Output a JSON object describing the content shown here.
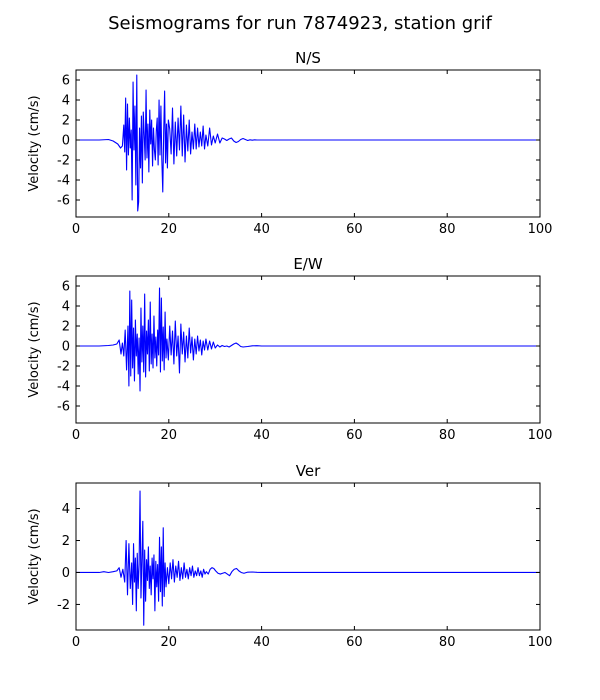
{
  "figure": {
    "title": "Seismograms for run 7874923, station grif"
  },
  "chart_data": [
    {
      "type": "line",
      "title": "N/S",
      "xlabel": "",
      "ylabel": "Velocity (cm/s)",
      "xlim": [
        0,
        100
      ],
      "ylim": [
        -7.7,
        7.0
      ],
      "xticks": [
        0,
        20,
        40,
        60,
        80,
        100
      ],
      "yticks": [
        -6,
        -4,
        -2,
        0,
        2,
        4,
        6
      ],
      "grid": false,
      "color": "#0000ff",
      "series": [
        {
          "x": [
            0,
            5,
            7,
            8,
            9,
            9.6,
            10.0,
            10.3,
            10.5,
            10.7,
            10.9,
            11.1,
            11.3,
            11.5,
            11.7,
            11.9,
            12.1,
            12.3,
            12.5,
            12.7,
            12.9,
            13.1,
            13.3,
            13.5,
            13.7,
            13.9,
            14.1,
            14.3,
            14.5,
            14.7,
            14.9,
            15.1,
            15.3,
            15.5,
            15.7,
            15.9,
            16.1,
            16.3,
            16.5,
            16.7,
            16.9,
            17.1,
            17.3,
            17.5,
            17.7,
            17.9,
            18.1,
            18.3,
            18.5,
            18.7,
            18.9,
            19.1,
            19.3,
            19.5,
            19.7,
            19.9,
            20.2,
            20.5,
            20.8,
            21.1,
            21.4,
            21.7,
            22.0,
            22.3,
            22.6,
            22.9,
            23.2,
            23.5,
            23.8,
            24.1,
            24.4,
            24.7,
            25.0,
            25.3,
            25.6,
            25.9,
            26.2,
            26.5,
            26.8,
            27.1,
            27.4,
            27.7,
            28.0,
            28.4,
            28.8,
            29.2,
            29.6,
            30.0,
            30.5,
            31.0,
            31.5,
            32.0,
            32.5,
            33.0,
            33.5,
            34.0,
            34.5,
            35.0,
            35.5,
            36.0,
            36.5,
            37.0,
            37.5,
            38.0,
            38.5,
            39.0,
            40,
            45,
            50,
            60,
            70,
            80,
            90,
            100
          ],
          "y": [
            0,
            0,
            0.05,
            -0.1,
            -0.4,
            -0.8,
            -0.6,
            1.5,
            -1.2,
            4.2,
            -3.0,
            3.6,
            -1.5,
            2.2,
            -0.8,
            1.0,
            -6.0,
            5.8,
            -1.0,
            3.4,
            -4.5,
            6.5,
            -7.1,
            -6.2,
            1.2,
            -2.8,
            2.4,
            -4.3,
            2.8,
            0.5,
            -2.0,
            5.0,
            -1.8,
            1.6,
            -3.2,
            3.0,
            -0.4,
            2.0,
            -2.6,
            1.2,
            -1.0,
            -2.0,
            0.9,
            2.2,
            -2.5,
            4.0,
            -1.5,
            3.4,
            -2.0,
            -5.2,
            0.8,
            4.9,
            -2.3,
            1.6,
            -2.8,
            2.0,
            1.1,
            -1.4,
            3.2,
            -2.4,
            1.8,
            -1.6,
            2.2,
            -1.0,
            3.4,
            -1.6,
            2.5,
            -2.2,
            1.5,
            -1.1,
            2.0,
            -1.4,
            0.8,
            -0.9,
            1.6,
            -0.9,
            1.2,
            -0.7,
            0.8,
            -0.6,
            1.4,
            -0.9,
            0.5,
            -0.6,
            1.2,
            -0.5,
            0.4,
            -0.3,
            0.6,
            -0.3,
            0.2,
            0.1,
            -0.05,
            0.1,
            0.2,
            -0.1,
            -0.25,
            -0.15,
            0.05,
            0.15,
            0.05,
            -0.05,
            0.02,
            -0.02,
            0.02,
            0,
            0,
            0,
            0,
            0,
            0,
            0,
            0,
            0
          ]
        }
      ]
    },
    {
      "type": "line",
      "title": "E/W",
      "xlabel": "",
      "ylabel": "Velocity (cm/s)",
      "xlim": [
        0,
        100
      ],
      "ylim": [
        -7.7,
        7.0
      ],
      "xticks": [
        0,
        20,
        40,
        60,
        80,
        100
      ],
      "yticks": [
        -6,
        -4,
        -2,
        0,
        2,
        4,
        6
      ],
      "grid": false,
      "color": "#0000ff",
      "series": [
        {
          "x": [
            0,
            5,
            7,
            8,
            8.8,
            9.3,
            9.7,
            10.0,
            10.3,
            10.6,
            10.9,
            11.2,
            11.4,
            11.6,
            11.8,
            12.0,
            12.2,
            12.4,
            12.6,
            12.8,
            13.0,
            13.2,
            13.4,
            13.6,
            13.8,
            14.0,
            14.2,
            14.4,
            14.6,
            14.8,
            15.0,
            15.2,
            15.4,
            15.6,
            15.8,
            16.0,
            16.2,
            16.4,
            16.6,
            16.8,
            17.0,
            17.2,
            17.4,
            17.6,
            17.8,
            18.0,
            18.2,
            18.4,
            18.6,
            18.8,
            19.0,
            19.2,
            19.4,
            19.6,
            19.9,
            20.2,
            20.5,
            20.8,
            21.1,
            21.4,
            21.7,
            22.0,
            22.3,
            22.6,
            22.9,
            23.2,
            23.5,
            23.8,
            24.1,
            24.4,
            24.7,
            25.0,
            25.3,
            25.6,
            25.9,
            26.2,
            26.5,
            26.8,
            27.1,
            27.4,
            27.7,
            28.0,
            28.4,
            28.8,
            29.2,
            29.6,
            30.0,
            30.5,
            31.0,
            31.5,
            32.0,
            32.5,
            33.0,
            33.5,
            34.0,
            34.5,
            35.0,
            35.5,
            36.0,
            37.0,
            38.0,
            39.0,
            40,
            45,
            50,
            60,
            70,
            80,
            90,
            100
          ],
          "y": [
            0,
            0,
            0.05,
            0.1,
            0.2,
            0.6,
            -0.8,
            0.3,
            -1.0,
            1.6,
            -2.4,
            2.0,
            -4.0,
            5.5,
            -3.0,
            4.6,
            -2.2,
            1.8,
            -3.5,
            2.6,
            -1.0,
            1.2,
            -2.8,
            0.8,
            -4.5,
            3.8,
            -1.6,
            2.0,
            -2.6,
            5.2,
            -3.1,
            1.5,
            -0.8,
            2.6,
            -2.5,
            4.4,
            -1.8,
            1.2,
            -2.2,
            3.0,
            -1.2,
            0.9,
            -2.0,
            1.6,
            -0.9,
            5.8,
            -2.6,
            4.8,
            -1.5,
            1.9,
            -2.4,
            3.4,
            -1.2,
            0.7,
            -1.4,
            2.0,
            -0.9,
            1.5,
            -1.8,
            2.5,
            -1.0,
            1.0,
            -2.7,
            2.2,
            -0.8,
            1.4,
            -1.6,
            1.0,
            -1.2,
            1.8,
            -0.7,
            0.9,
            -1.4,
            0.7,
            -0.8,
            1.0,
            -0.5,
            0.6,
            -0.9,
            0.5,
            -0.4,
            0.7,
            -0.4,
            0.5,
            -0.3,
            0.4,
            -0.2,
            0.1,
            -0.1,
            0.05,
            -0.05,
            0.0,
            -0.1,
            0.05,
            0.2,
            0.3,
            0.15,
            -0.05,
            -0.1,
            -0.05,
            0.02,
            0.03,
            0,
            0,
            0,
            0,
            0,
            0,
            0,
            0
          ]
        }
      ]
    },
    {
      "type": "line",
      "title": "Ver",
      "xlabel": "",
      "ylabel": "Velocity (cm/s)",
      "xlim": [
        0,
        100
      ],
      "ylim": [
        -3.6,
        5.6
      ],
      "xticks": [
        0,
        20,
        40,
        60,
        80,
        100
      ],
      "yticks": [
        -2,
        0,
        2,
        4
      ],
      "grid": false,
      "color": "#0000ff",
      "series": [
        {
          "x": [
            0,
            5,
            6,
            7,
            8,
            8.8,
            9.3,
            9.7,
            10.1,
            10.5,
            10.8,
            11.1,
            11.4,
            11.7,
            12.0,
            12.2,
            12.4,
            12.6,
            12.8,
            13.0,
            13.2,
            13.4,
            13.6,
            13.8,
            14.0,
            14.2,
            14.4,
            14.6,
            14.8,
            15.0,
            15.2,
            15.4,
            15.6,
            15.8,
            16.0,
            16.2,
            16.4,
            16.6,
            16.8,
            17.0,
            17.2,
            17.4,
            17.6,
            17.8,
            18.0,
            18.2,
            18.4,
            18.6,
            18.8,
            19.0,
            19.2,
            19.4,
            19.7,
            20.0,
            20.3,
            20.6,
            20.9,
            21.2,
            21.5,
            21.8,
            22.1,
            22.4,
            22.7,
            23.0,
            23.3,
            23.6,
            23.9,
            24.2,
            24.5,
            24.8,
            25.1,
            25.4,
            25.7,
            26.0,
            26.3,
            26.6,
            26.9,
            27.2,
            27.5,
            27.8,
            28.1,
            28.5,
            28.9,
            29.3,
            29.7,
            30.1,
            30.6,
            31.1,
            31.6,
            32.1,
            32.6,
            33.1,
            33.6,
            34.1,
            34.6,
            35.1,
            35.6,
            36.2,
            37.0,
            38.0,
            39.0,
            40,
            45,
            50,
            60,
            70,
            80,
            90,
            100
          ],
          "y": [
            0,
            0,
            0.05,
            0.0,
            0.05,
            0.1,
            0.3,
            -0.3,
            0.2,
            -0.6,
            2.0,
            -1.4,
            1.8,
            -1.0,
            0.6,
            -2.0,
            1.8,
            -0.6,
            0.9,
            -2.4,
            1.2,
            -1.0,
            0.5,
            5.1,
            -1.6,
            0.8,
            3.2,
            -3.3,
            1.4,
            -1.8,
            0.8,
            -0.5,
            1.6,
            -1.0,
            0.4,
            -1.4,
            0.9,
            -0.4,
            1.1,
            -2.4,
            0.7,
            -0.9,
            0.5,
            -1.8,
            2.2,
            -1.2,
            1.6,
            -2.1,
            2.8,
            -1.5,
            0.6,
            -0.9,
            0.3,
            -0.7,
            0.6,
            -0.4,
            0.8,
            -0.6,
            0.4,
            -0.3,
            0.7,
            -0.5,
            0.3,
            -0.4,
            0.6,
            -0.3,
            0.2,
            -0.4,
            0.3,
            -0.2,
            0.4,
            -0.3,
            0.1,
            -0.2,
            0.3,
            -0.2,
            0.1,
            -0.3,
            0.2,
            -0.1,
            0.05,
            -0.1,
            0.2,
            0.3,
            0.25,
            0.1,
            -0.05,
            -0.1,
            -0.05,
            0.0,
            -0.1,
            -0.2,
            0.05,
            0.2,
            0.25,
            0.1,
            0.0,
            -0.05,
            0.02,
            0.03,
            0.01,
            0,
            0,
            0,
            0,
            0,
            0,
            0,
            0
          ]
        }
      ]
    }
  ]
}
